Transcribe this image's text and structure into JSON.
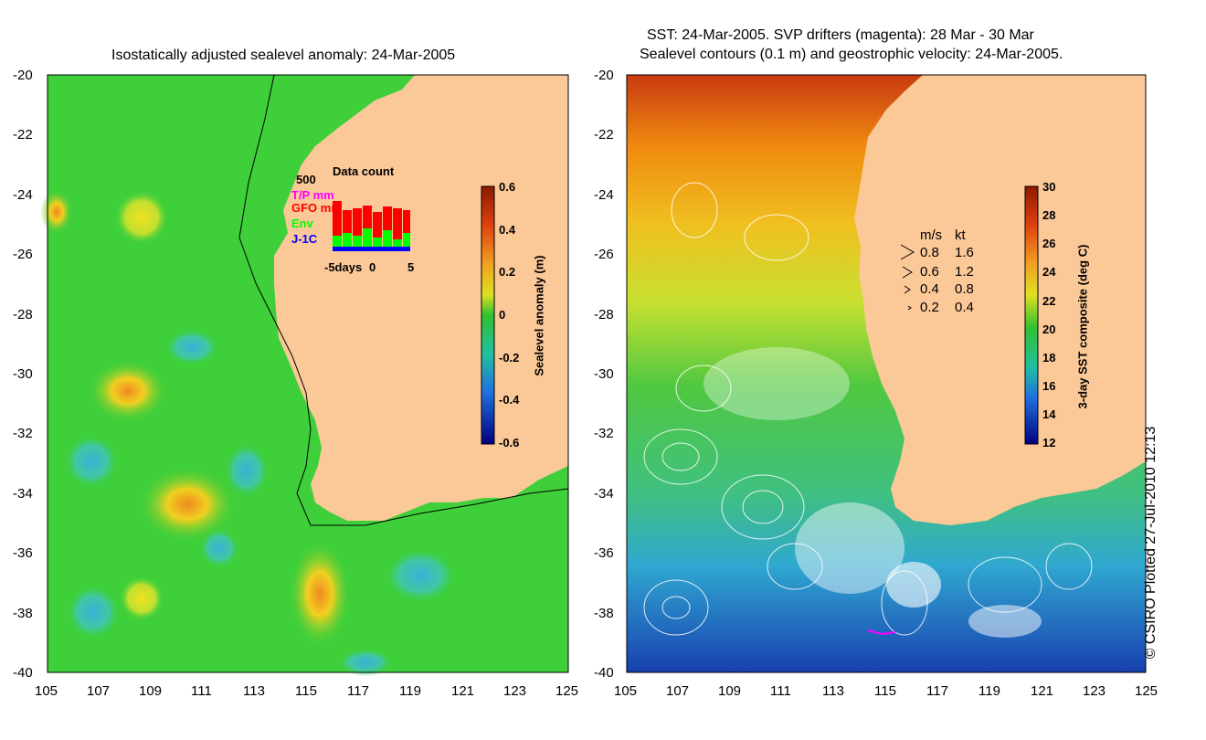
{
  "left_panel": {
    "title": "Isostatically adjusted sealevel anomaly: 24-Mar-2005",
    "y_ticks": [
      "-20",
      "-22",
      "-24",
      "-26",
      "-28",
      "-30",
      "-32",
      "-34",
      "-36",
      "-38",
      "-40"
    ],
    "x_ticks": [
      "105",
      "107",
      "109",
      "111",
      "113",
      "115",
      "117",
      "119",
      "121",
      "123",
      "125"
    ],
    "lon_range": [
      105,
      125
    ],
    "lat_range": [
      -40,
      -20
    ],
    "colorbar": {
      "label": "Sealevel anomaly (m)",
      "ticks": [
        "0.6",
        "0.4",
        "0.2",
        "0",
        "-0.2",
        "-0.4",
        "-0.6"
      ],
      "range": [
        -0.6,
        0.6
      ]
    },
    "data_count": {
      "title": "Data count",
      "max_label": "500",
      "x_labels": [
        "-5days",
        "0",
        "5"
      ],
      "legend": [
        {
          "label": "T/P mm",
          "color": "#ff00ff"
        },
        {
          "label": "GFO mm",
          "color": "#ff0000"
        },
        {
          "label": "Env",
          "color": "#00ff00"
        },
        {
          "label": "J-1C",
          "color": "#0000ff"
        }
      ]
    }
  },
  "right_panel": {
    "title_line1": "SST: 24-Mar-2005. SVP drifters (magenta): 28 Mar - 30 Mar",
    "title_line2": "Sealevel contours (0.1 m) and geostrophic velocity: 24-Mar-2005.",
    "y_ticks": [
      "-20",
      "-22",
      "-24",
      "-26",
      "-28",
      "-30",
      "-32",
      "-34",
      "-36",
      "-38",
      "-40"
    ],
    "x_ticks": [
      "105",
      "107",
      "109",
      "111",
      "113",
      "115",
      "117",
      "119",
      "121",
      "123",
      "125"
    ],
    "lon_range": [
      105,
      125
    ],
    "lat_range": [
      -40,
      -20
    ],
    "colorbar": {
      "label": "3-day SST composite (deg C)",
      "ticks": [
        "30",
        "28",
        "26",
        "24",
        "22",
        "20",
        "18",
        "16",
        "14",
        "12"
      ],
      "range": [
        12,
        30
      ]
    },
    "velocity_key": {
      "header_ms": "m/s",
      "header_kt": "kt",
      "rows": [
        {
          "ms": "0.8",
          "kt": "1.6"
        },
        {
          "ms": "0.6",
          "kt": "1.2"
        },
        {
          "ms": "0.4",
          "kt": "0.8"
        },
        {
          "ms": "0.2",
          "kt": "0.4"
        }
      ]
    }
  },
  "credit": "© CSIRO Plotted 27-Jul-2010 12:13",
  "colors": {
    "land": "#fbc898",
    "ocean_green": "#3ecf3a",
    "coast_line": "#000000"
  }
}
